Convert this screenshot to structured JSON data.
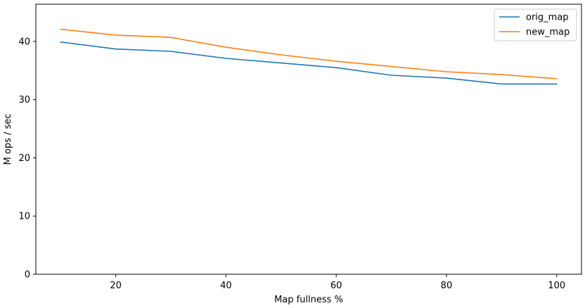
{
  "chart_data": {
    "type": "line",
    "title": "",
    "xlabel": "Map fullness %",
    "ylabel": "M ops / sec",
    "x": [
      10,
      20,
      30,
      40,
      50,
      60,
      70,
      80,
      90,
      100
    ],
    "xlim": [
      5.5,
      104.5
    ],
    "ylim": [
      0,
      46.4
    ],
    "xticks": [
      20,
      40,
      60,
      80,
      100
    ],
    "yticks": [
      0,
      10,
      20,
      30,
      40
    ],
    "grid": false,
    "legend_position": "top-right",
    "series": [
      {
        "name": "orig_map",
        "color": "#1f77b4",
        "values": [
          39.9,
          38.7,
          38.3,
          37.1,
          36.3,
          35.5,
          34.2,
          33.7,
          32.7,
          32.7
        ]
      },
      {
        "name": "new_map",
        "color": "#ff7f0e",
        "values": [
          42.1,
          41.1,
          40.7,
          39.0,
          37.7,
          36.6,
          35.7,
          34.8,
          34.3,
          33.6
        ]
      }
    ]
  }
}
